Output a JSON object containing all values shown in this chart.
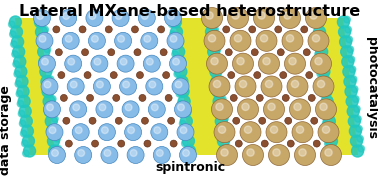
{
  "title": "Lateral MXene-based heterostructure",
  "label_left": "data storage",
  "label_right": "photocatalysis",
  "label_bottom": "spintronic",
  "title_fontsize": 11.5,
  "label_fontsize": 9,
  "bg_color": "#ffffff",
  "yellow_color": "#d8d800",
  "yellow2_color": "#e8e840",
  "cyan_color": "#20c8c0",
  "atom_blue_color": "#88bce8",
  "atom_blue_edge": "#4488c0",
  "atom_tan_color": "#c8a868",
  "atom_tan_edge": "#906838",
  "atom_small_color": "#8B5030",
  "atom_small_edge": "#5a2810",
  "figsize": [
    3.78,
    1.76
  ],
  "dpi": 100
}
